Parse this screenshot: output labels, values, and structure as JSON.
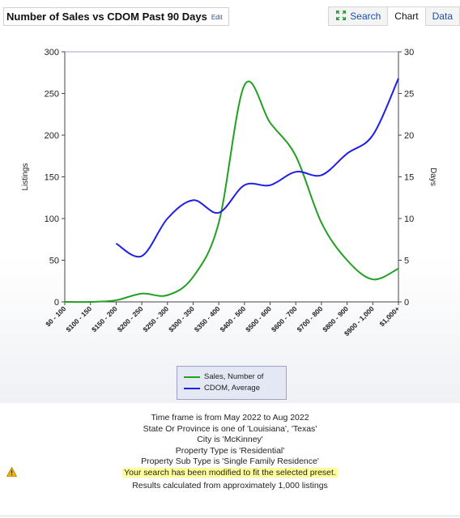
{
  "header": {
    "title": "Number of Sales vs CDOM Past 90 Days",
    "edit_label": "Edit",
    "tabs": [
      {
        "label": "Search",
        "icon": "expand-icon"
      },
      {
        "label": "Chart"
      },
      {
        "label": "Data"
      }
    ]
  },
  "chart_data": {
    "type": "line",
    "categories": [
      "$0 - 100",
      "$100 - 150",
      "$150 - 200",
      "$200 - 250",
      "$250 - 300",
      "$300 - 350",
      "$350 - 400",
      "$400 - 500",
      "$500 - 600",
      "$600 - 700",
      "$700 - 800",
      "$800 - 900",
      "$900 - 1,000",
      "$1,000+"
    ],
    "series": [
      {
        "name": "Sales, Number of",
        "axis": "left",
        "color": "#22a022",
        "values": [
          0,
          0,
          2,
          10,
          8,
          30,
          95,
          260,
          215,
          175,
          95,
          50,
          27,
          40
        ]
      },
      {
        "name": "CDOM, Average",
        "axis": "right",
        "color": "#1f1fe8",
        "values": [
          null,
          null,
          7,
          5.5,
          10,
          12.2,
          10.7,
          14,
          14,
          15.6,
          15.2,
          17.8,
          20,
          26.8
        ]
      }
    ],
    "ylabel": "Listings",
    "y2label": "Days",
    "ylim": [
      0,
      300
    ],
    "y2lim": [
      0,
      30
    ],
    "yticks": [
      0,
      50,
      100,
      150,
      200,
      250,
      300
    ],
    "y2ticks": [
      0,
      5,
      10,
      15,
      20,
      25,
      30
    ],
    "grid": false,
    "legend_position": "bottom-center"
  },
  "info": {
    "lines": [
      "Time frame is from May 2022 to Aug 2022",
      "State Or Province is one of 'Louisiana', 'Texas'",
      "City is 'McKinney'",
      "Property Type is 'Residential'",
      "Property Sub Type is 'Single Family Residence'"
    ],
    "warning": "Your search has been modified to fit the selected preset.",
    "results": "Results calculated from approximately 1,000 listings"
  },
  "colors": {
    "link": "#1a4fa8",
    "warning_bg": "#ffff99",
    "warning_icon": "#f0b400"
  }
}
